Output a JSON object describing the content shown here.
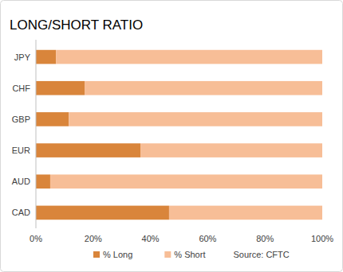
{
  "chart_data": {
    "type": "bar",
    "title": "LONG/SHORT RATIO",
    "orientation": "horizontal",
    "stacked": true,
    "grid": false,
    "legend": "bottom",
    "categories": [
      "JPY",
      "CHF",
      "GBP",
      "EUR",
      "AUD",
      "CAD"
    ],
    "series": [
      {
        "name": "% Long",
        "color": "#d9853b",
        "values": [
          7,
          17,
          11.5,
          36.5,
          5,
          46.5
        ]
      },
      {
        "name": "% Short",
        "color": "#f7be97",
        "values": [
          93,
          83,
          88.5,
          63.5,
          95,
          53.5
        ]
      }
    ],
    "xlim": [
      0,
      100
    ],
    "xticks": [
      {
        "value": 0,
        "label": "0%"
      },
      {
        "value": 20,
        "label": "20%"
      },
      {
        "value": 40,
        "label": "40%"
      },
      {
        "value": 60,
        "label": "60%"
      },
      {
        "value": 80,
        "label": "80%"
      },
      {
        "value": 100,
        "label": "100%"
      }
    ],
    "annotations": [
      "Source: CFTC"
    ]
  }
}
